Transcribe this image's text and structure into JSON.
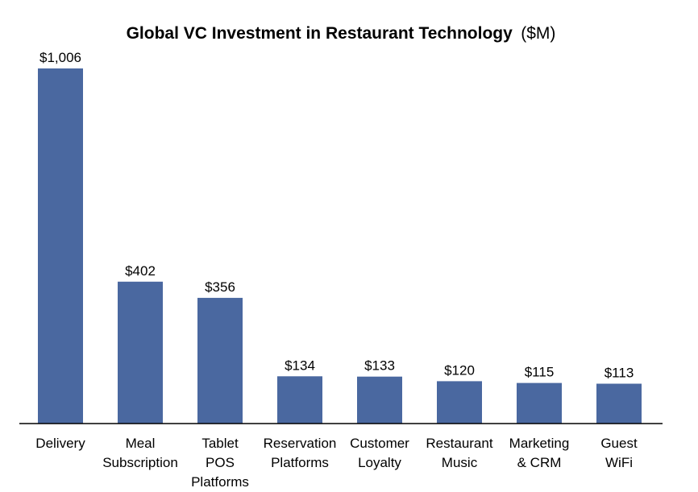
{
  "chart_data": {
    "type": "bar",
    "title": "Global VC Investment in Restaurant Technology",
    "title_unit": "($M)",
    "xlabel": "",
    "ylabel": "",
    "ylim": [
      0,
      1006
    ],
    "grid": false,
    "legend": "none",
    "bar_color": "#4a68a0",
    "categories": [
      [
        "Delivery"
      ],
      [
        "Meal",
        "Subscription"
      ],
      [
        "Tablet",
        "POS",
        "Platforms"
      ],
      [
        "Reservation",
        "Platforms"
      ],
      [
        "Customer",
        "Loyalty"
      ],
      [
        "Restaurant",
        "Music"
      ],
      [
        "Marketing",
        "& CRM"
      ],
      [
        "Guest",
        "WiFi"
      ]
    ],
    "values": [
      1006,
      402,
      356,
      134,
      133,
      120,
      115,
      113
    ],
    "value_labels": [
      "$1,006",
      "$402",
      "$356",
      "$134",
      "$133",
      "$120",
      "$115",
      "$113"
    ]
  }
}
